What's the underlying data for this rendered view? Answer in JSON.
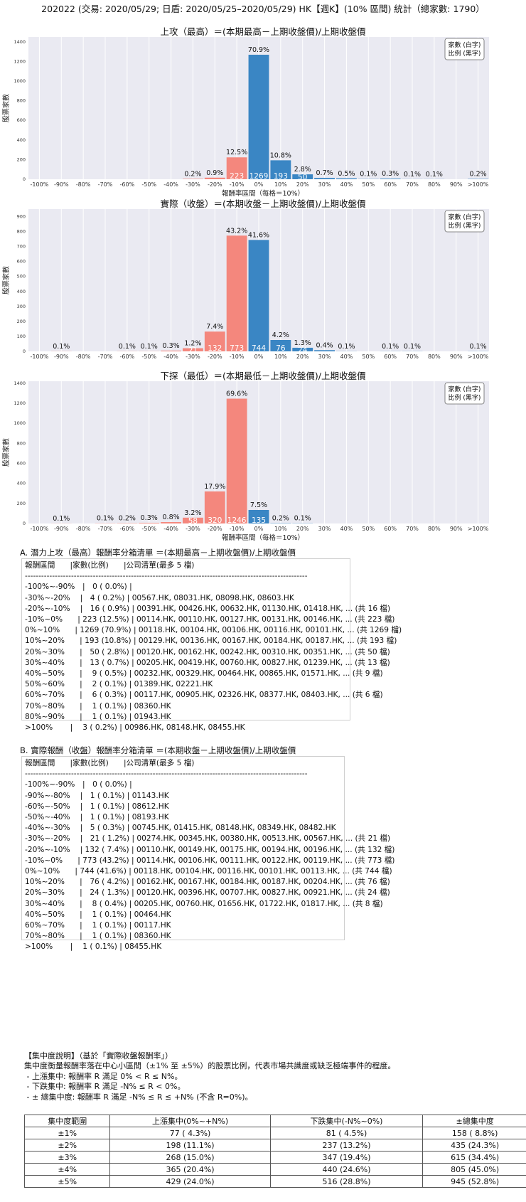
{
  "header": "202022 (交易: 2020/05/29; 日盾: 2020/05/25–2020/05/29) HK【週K】(10% 區間) 統計（總家數: 1790）",
  "legend_text": [
    "家數 (白字)",
    "比例 (黑字)"
  ],
  "chart_data": [
    {
      "type": "bar",
      "title": "上攻（最高）＝(本期最高－上期收盤價)/上期收盤價",
      "xlabel": "報酬率區間（每格＝10%）",
      "ylabel": "股票家數",
      "ylim": [
        0,
        1450
      ],
      "yticks": [
        0,
        200,
        400,
        600,
        800,
        1000,
        1200,
        1400
      ],
      "categories": [
        "-100%",
        "-90%",
        "-80%",
        "-70%",
        "-60%",
        "-50%",
        "-40%",
        "-30%",
        "-20%",
        "-10%",
        "0%",
        "10%",
        "20%",
        "30%",
        "40%",
        "50%",
        "60%",
        "70%",
        "80%",
        "90%",
        ">100%"
      ],
      "values": [
        0,
        0,
        0,
        0,
        0,
        0,
        0,
        4,
        16,
        223,
        1269,
        193,
        50,
        13,
        9,
        2,
        6,
        1,
        1,
        0,
        3
      ],
      "pct_labels": [
        "",
        "",
        "",
        "",
        "",
        "",
        "",
        "0.2%",
        "0.9%",
        "12.5%",
        "70.9%",
        "10.8%",
        "2.8%",
        "0.7%",
        "0.5%",
        "0.1%",
        "0.3%",
        "0.1%",
        "0.1%",
        "",
        "0.2%"
      ],
      "count_labels": [
        "",
        "",
        "",
        "",
        "",
        "",
        "",
        "",
        "",
        "223",
        "1269",
        "193",
        "50",
        "",
        "",
        "",
        "",
        "",
        "",
        "",
        ""
      ],
      "grid": true,
      "legend": "top-right"
    },
    {
      "type": "bar",
      "title": "實際（收盤）＝(本期收盤－上期收盤價)/上期收盤價",
      "xlabel": "",
      "ylabel": "股票家數",
      "ylim": [
        0,
        950
      ],
      "yticks": [
        0,
        100,
        200,
        300,
        400,
        500,
        600,
        700,
        800,
        900
      ],
      "categories": [
        "-100%",
        "-90%",
        "-80%",
        "-70%",
        "-60%",
        "-50%",
        "-40%",
        "-30%",
        "-20%",
        "-10%",
        "0%",
        "10%",
        "20%",
        "30%",
        "40%",
        "50%",
        "60%",
        "70%",
        "80%",
        "90%",
        ">100%"
      ],
      "values": [
        0,
        1,
        0,
        0,
        1,
        1,
        5,
        21,
        132,
        773,
        744,
        76,
        24,
        8,
        1,
        0,
        1,
        1,
        0,
        0,
        1
      ],
      "pct_labels": [
        "",
        "0.1%",
        "",
        "",
        "0.1%",
        "0.1%",
        "0.3%",
        "1.2%",
        "7.4%",
        "43.2%",
        "41.6%",
        "4.2%",
        "1.3%",
        "0.4%",
        "0.1%",
        "",
        "0.1%",
        "0.1%",
        "",
        "",
        "0.1%"
      ],
      "count_labels": [
        "",
        "",
        "",
        "",
        "",
        "",
        "",
        "21",
        "132",
        "773",
        "744",
        "76",
        "24",
        "",
        "",
        "",
        "",
        "",
        "",
        "",
        ""
      ],
      "grid": true,
      "legend": "top-right"
    },
    {
      "type": "bar",
      "title": "下探（最低）＝(本期最低－上期收盤價)/上期收盤價",
      "xlabel": "報酬率區間（每格＝10%）",
      "ylabel": "股票家數",
      "ylim": [
        0,
        1420
      ],
      "yticks": [
        0,
        200,
        400,
        600,
        800,
        1000,
        1200,
        1400
      ],
      "categories": [
        "-100%",
        "-90%",
        "-80%",
        "-70%",
        "-60%",
        "-50%",
        "-40%",
        "-30%",
        "-20%",
        "-10%",
        "0%",
        "10%",
        "20%",
        "30%",
        "40%",
        "50%",
        "60%",
        "70%",
        "80%",
        "90%",
        ">100%"
      ],
      "values": [
        0,
        1,
        0,
        2,
        3,
        6,
        14,
        58,
        320,
        1246,
        135,
        3,
        2,
        0,
        0,
        0,
        0,
        0,
        0,
        0,
        0
      ],
      "pct_labels": [
        "",
        "0.1%",
        "",
        "0.1%",
        "0.2%",
        "0.3%",
        "0.8%",
        "3.2%",
        "17.9%",
        "69.6%",
        "7.5%",
        "0.2%",
        "0.1%",
        "",
        "",
        "",
        "",
        "",
        "",
        "",
        ""
      ],
      "count_labels": [
        "",
        "",
        "",
        "",
        "",
        "",
        "",
        "58",
        "320",
        "1246",
        "135",
        "",
        "",
        "",
        "",
        "",
        "",
        "",
        "",
        "",
        ""
      ],
      "grid": true,
      "legend": "top-right"
    }
  ],
  "colors": {
    "negative": "#f4877d",
    "positive": "#3a86c4",
    "plot_bg": "#eaeaf2"
  },
  "list_a": {
    "title": "A. 潛力上攻（最高）報酬率分箱清單 ＝(本期最高－上期收盤價)/上期收盤價",
    "lines": [
      "報酬區間　　|家數(比例)　　|公司清單(最多 5 檔)",
      "--------------------------------------------------------------------------------------------------------",
      "-100%~-90%　|　0 ( 0.0%) |",
      "-30%~-20%　 |　4 ( 0.2%) | 00567.HK, 08031.HK, 08098.HK, 08603.HK",
      "-20%~-10%　 |　16 ( 0.9%) | 00391.HK, 00426.HK, 00632.HK, 01130.HK, 01418.HK, ... (共 16 檔)",
      "-10%~0%　　| 223 (12.5%) | 00114.HK, 00110.HK, 00127.HK, 00131.HK, 00146.HK, ... (共 223 檔)",
      "0%~10%　　| 1269 (70.9%) | 00118.HK, 00104.HK, 00106.HK, 00116.HK, 00101.HK, ... (共 1269 檔)",
      "10%~20%　　| 193 (10.8%) | 00129.HK, 00136.HK, 00167.HK, 00184.HK, 00187.HK, ... (共 193 檔)",
      "20%~30%　　|　50 ( 2.8%) | 00120.HK, 00162.HK, 00242.HK, 00310.HK, 00351.HK, ... (共 50 檔)",
      "30%~40%　　|　13 ( 0.7%) | 00205.HK, 00419.HK, 00760.HK, 00827.HK, 01239.HK, ... (共 13 檔)",
      "40%~50%　　|　 9 ( 0.5%) | 00232.HK, 00329.HK, 00464.HK, 00865.HK, 01571.HK, ... (共 9 檔)",
      "50%~60%　　|　 2 ( 0.1%) | 01389.HK, 02221.HK",
      "60%~70%　　|　 6 ( 0.3%) | 00117.HK, 00905.HK, 02326.HK, 08377.HK, 08403.HK, ... (共 6 檔)",
      "70%~80%　　|　 1 ( 0.1%) | 08360.HK",
      "80%~90%　　|　 1 ( 0.1%) | 01943.HK",
      ">100%　　 |　 3 ( 0.2%) | 00986.HK, 08148.HK, 08455.HK"
    ]
  },
  "list_b": {
    "title": "B. 實際報酬（收盤）報酬率分箱清單 ＝(本期收盤－上期收盤價)/上期收盤價",
    "lines": [
      "報酬區間　　|家數(比例)　　|公司清單(最多 5 檔)",
      "--------------------------------------------------------------------------------------------------------",
      "-100%~-90%　|　0 ( 0.0%) |",
      "-90%~-80%　 |　1 ( 0.1%) | 01143.HK",
      "-60%~-50%　 |　1 ( 0.1%) | 08612.HK",
      "-50%~-40%　 |　1 ( 0.1%) | 08193.HK",
      "-40%~-30%　 |　5 ( 0.3%) | 00745.HK, 01415.HK, 08148.HK, 08349.HK, 08482.HK",
      "-30%~-20%　 |　21 ( 1.2%) | 00274.HK, 00345.HK, 00380.HK, 00513.HK, 00567.HK, ... (共 21 檔)",
      "-20%~-10%　 | 132 ( 7.4%) | 00110.HK, 00149.HK, 00175.HK, 00194.HK, 00196.HK, ... (共 132 檔)",
      "-10%~0%　　| 773 (43.2%) | 00114.HK, 00106.HK, 00111.HK, 00122.HK, 00119.HK, ... (共 773 檔)",
      "0%~10%　　| 744 (41.6%) | 00118.HK, 00104.HK, 00116.HK, 00101.HK, 00113.HK, ... (共 744 檔)",
      "10%~20%　　|　76 ( 4.2%) | 00162.HK, 00167.HK, 00184.HK, 00187.HK, 00204.HK, ... (共 76 檔)",
      "20%~30%　　|　24 ( 1.3%) | 00120.HK, 00396.HK, 00707.HK, 00827.HK, 00921.HK, ... (共 24 檔)",
      "30%~40%　　|　 8 ( 0.4%) | 00205.HK, 00760.HK, 01656.HK, 01722.HK, 01817.HK, ... (共 8 檔)",
      "40%~50%　　|　 1 ( 0.1%) | 00464.HK",
      "60%~70%　　|　 1 ( 0.1%) | 00117.HK",
      "70%~80%　　|　 1 ( 0.1%) | 08360.HK",
      ">100%　　 |　 1 ( 0.1%) | 08455.HK"
    ]
  },
  "concentration": {
    "lines": [
      "【集中度說明】（基於「實際收盤報酬率」）",
      "集中度衡量報酬率落在中心小區間（±1% 至 ±5%）的股票比例，代表市場共識度或缺乏極端事件的程度。",
      " - 上漲集中: 報酬率 R 滿足 0% < R ≤ N%。",
      " - 下跌集中: 報酬率 R 滿足 -N% ≤ R < 0%。",
      " - ± 總集中度: 報酬率 R 滿足 -N% ≤ R ≤ +N% (不含 R=0%)。"
    ],
    "headers": [
      "集中度範圍",
      "上漲集中(0%~+N%)",
      "下跌集中(-N%~0%)",
      "±總集中度"
    ],
    "rows": [
      [
        "±1%",
        "77 ( 4.3%)",
        "81 ( 4.5%)",
        "158 ( 8.8%)"
      ],
      [
        "±2%",
        "198 (11.1%)",
        "237 (13.2%)",
        "435 (24.3%)"
      ],
      [
        "±3%",
        "268 (15.0%)",
        "347 (19.4%)",
        "615 (34.4%)"
      ],
      [
        "±4%",
        "365 (20.4%)",
        "440 (24.6%)",
        "805 (45.0%)"
      ],
      [
        "±5%",
        "429 (24.0%)",
        "516 (28.8%)",
        "945 (52.8%)"
      ]
    ]
  }
}
